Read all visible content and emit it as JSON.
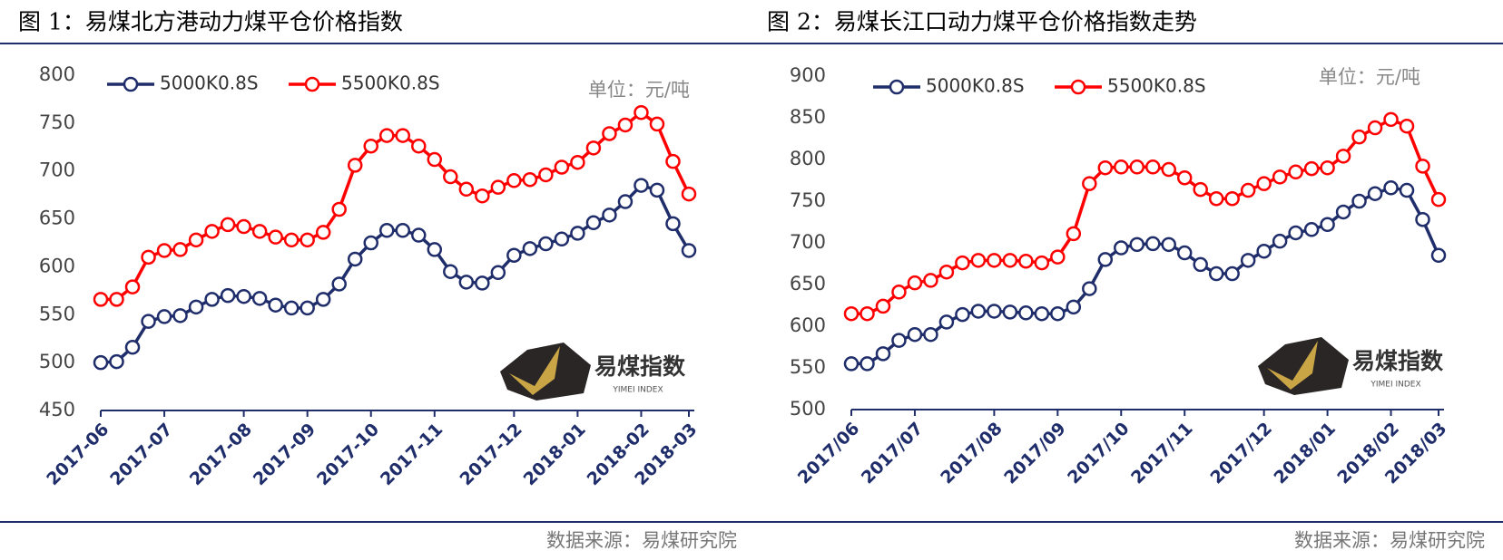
{
  "chart_data": [
    {
      "type": "line",
      "title": "图 1：易煤北方港动力煤平仓价格指数",
      "unit": "单位：元/吨",
      "source": "数据来源：易煤研究院",
      "logo_text": "易煤指数",
      "logo_subtext": "YIMEI INDEX",
      "categories": [
        "2017-06",
        null,
        null,
        null,
        "2017-07",
        null,
        null,
        null,
        null,
        "2017-08",
        null,
        null,
        null,
        "2017-09",
        null,
        null,
        null,
        "2017-10",
        null,
        null,
        null,
        "2017-11",
        null,
        null,
        null,
        null,
        "2017-12",
        null,
        null,
        null,
        "2018-01",
        null,
        null,
        null,
        "2018-02",
        null,
        null,
        "2018-03"
      ],
      "series": [
        {
          "name": "5000K0.8S",
          "color": "#1f2d6b",
          "values": [
            500,
            501,
            516,
            543,
            548,
            549,
            558,
            566,
            570,
            569,
            567,
            560,
            557,
            557,
            566,
            582,
            608,
            625,
            638,
            638,
            633,
            618,
            595,
            584,
            583,
            594,
            612,
            619,
            624,
            629,
            635,
            646,
            654,
            668,
            685,
            680,
            645,
            617
          ]
        },
        {
          "name": "5500K0.8S",
          "color": "#ff0000",
          "values": [
            566,
            566,
            579,
            610,
            617,
            618,
            628,
            637,
            644,
            642,
            637,
            631,
            628,
            628,
            636,
            660,
            706,
            726,
            737,
            737,
            726,
            712,
            694,
            681,
            674,
            683,
            690,
            691,
            696,
            704,
            709,
            724,
            739,
            748,
            761,
            749,
            710,
            676
          ]
        }
      ],
      "ylim": [
        450,
        800
      ],
      "yticks": [
        450,
        500,
        550,
        600,
        650,
        700,
        750,
        800
      ],
      "grid": false
    },
    {
      "type": "line",
      "title": "图 2：易煤长江口动力煤平仓价格指数走势",
      "unit": "单位：元/吨",
      "source": "数据来源：易煤研究院",
      "logo_text": "易煤指数",
      "logo_subtext": "YIMEI INDEX",
      "categories": [
        "2017/06",
        null,
        null,
        null,
        "2017/07",
        null,
        null,
        null,
        null,
        "2017/08",
        null,
        null,
        null,
        "2017/09",
        null,
        null,
        null,
        "2017/10",
        null,
        null,
        null,
        "2017/11",
        null,
        null,
        null,
        null,
        "2017/12",
        null,
        null,
        null,
        "2018/01",
        null,
        null,
        null,
        "2018/02",
        null,
        null,
        "2018/03"
      ],
      "series": [
        {
          "name": "5000K0.8S",
          "color": "#1f2d6b",
          "values": [
            555,
            555,
            567,
            583,
            590,
            590,
            605,
            614,
            618,
            618,
            617,
            616,
            615,
            615,
            623,
            645,
            680,
            694,
            698,
            699,
            698,
            688,
            674,
            663,
            663,
            679,
            690,
            702,
            712,
            716,
            722,
            737,
            750,
            759,
            766,
            763,
            728,
            685
          ]
        },
        {
          "name": "5500K0.8S",
          "color": "#ff0000",
          "values": [
            615,
            615,
            624,
            641,
            652,
            655,
            665,
            676,
            679,
            679,
            679,
            678,
            676,
            683,
            711,
            771,
            790,
            791,
            791,
            791,
            788,
            778,
            764,
            753,
            753,
            763,
            771,
            779,
            785,
            789,
            790,
            804,
            827,
            838,
            848,
            840,
            792,
            752
          ]
        }
      ],
      "ylim": [
        500,
        900
      ],
      "yticks": [
        500,
        550,
        600,
        650,
        700,
        750,
        800,
        850,
        900
      ],
      "grid": false
    }
  ]
}
